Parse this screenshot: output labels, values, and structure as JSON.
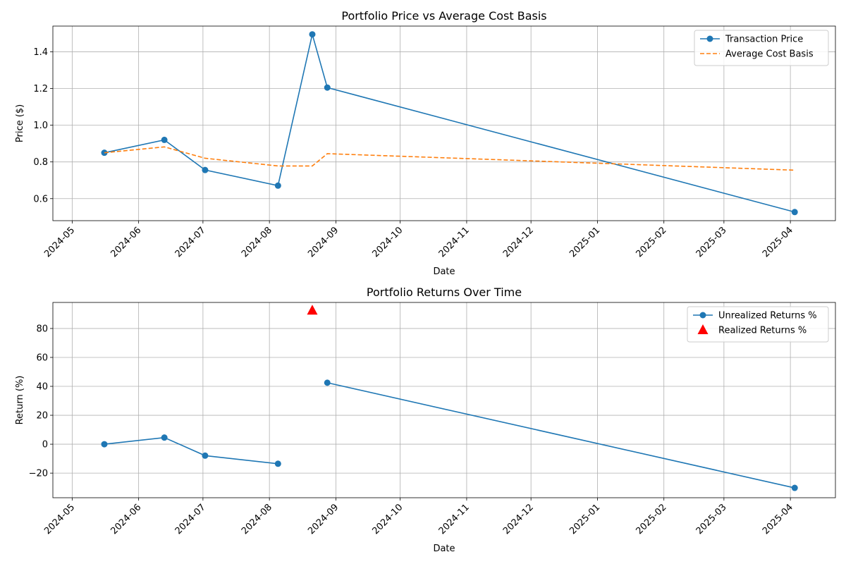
{
  "chart_data": [
    {
      "type": "line",
      "title": "Portfolio Price vs Average Cost Basis",
      "xlabel": "Date",
      "ylabel": "Price ($)",
      "xlim": [
        "2024-04-22",
        "2025-04-22"
      ],
      "ylim": [
        0.48,
        1.54
      ],
      "yticks": [
        0.6,
        0.8,
        1.0,
        1.2,
        1.4
      ],
      "ytick_labels": [
        "0.6",
        "0.8",
        "1.0",
        "1.2",
        "1.4"
      ],
      "xticks": [
        "2024-05-01",
        "2024-06-01",
        "2024-07-01",
        "2024-08-01",
        "2024-09-01",
        "2024-10-01",
        "2024-11-01",
        "2024-12-01",
        "2025-01-01",
        "2025-02-01",
        "2025-03-01",
        "2025-04-01"
      ],
      "xtick_labels": [
        "2024-05",
        "2024-06",
        "2024-07",
        "2024-08",
        "2024-09",
        "2024-10",
        "2024-11",
        "2024-12",
        "2025-01",
        "2025-02",
        "2025-03",
        "2025-04"
      ],
      "grid": true,
      "legend_position": "top-right",
      "series": [
        {
          "name": "Transaction Price",
          "color": "#1f77b4",
          "style": "solid",
          "marker": "circle",
          "x": [
            "2024-05-16",
            "2024-06-13",
            "2024-07-02",
            "2024-08-05",
            "2024-08-21",
            "2024-08-28",
            "2025-04-03"
          ],
          "y": [
            0.85,
            0.92,
            0.756,
            0.671,
            1.495,
            1.205,
            0.527
          ]
        },
        {
          "name": "Average Cost Basis",
          "color": "#ff7f0e",
          "style": "dashed",
          "marker": "none",
          "x": [
            "2024-05-16",
            "2024-06-13",
            "2024-07-02",
            "2024-08-05",
            "2024-08-21",
            "2024-08-28",
            "2025-04-03"
          ],
          "y": [
            0.85,
            0.882,
            0.82,
            0.778,
            0.778,
            0.845,
            0.755
          ]
        }
      ]
    },
    {
      "type": "line",
      "title": "Portfolio Returns Over Time",
      "xlabel": "Date",
      "ylabel": "Return (%)",
      "xlim": [
        "2024-04-22",
        "2025-04-22"
      ],
      "ylim": [
        -37,
        98
      ],
      "yticks": [
        -20,
        0,
        20,
        40,
        60,
        80
      ],
      "ytick_labels": [
        "−20",
        "0",
        "20",
        "40",
        "60",
        "80"
      ],
      "xticks": [
        "2024-05-01",
        "2024-06-01",
        "2024-07-01",
        "2024-08-01",
        "2024-09-01",
        "2024-10-01",
        "2024-11-01",
        "2024-12-01",
        "2025-01-01",
        "2025-02-01",
        "2025-03-01",
        "2025-04-01"
      ],
      "xtick_labels": [
        "2024-05",
        "2024-06",
        "2024-07",
        "2024-08",
        "2024-09",
        "2024-10",
        "2024-11",
        "2024-12",
        "2025-01",
        "2025-02",
        "2025-03",
        "2025-04"
      ],
      "grid": true,
      "legend_position": "top-right",
      "series": [
        {
          "name": "Unrealized Returns %",
          "color": "#1f77b4",
          "style": "solid",
          "marker": "circle",
          "segments": [
            {
              "x": [
                "2024-05-16",
                "2024-06-13",
                "2024-07-02",
                "2024-08-05"
              ],
              "y": [
                0,
                4.6,
                -7.9,
                -13.5
              ]
            },
            {
              "x": [
                "2024-08-28",
                "2025-04-03"
              ],
              "y": [
                42.5,
                -30.2
              ]
            }
          ]
        },
        {
          "name": "Realized Returns %",
          "color": "#ff0000",
          "style": "none",
          "marker": "triangle",
          "x": [
            "2024-08-21"
          ],
          "y": [
            92.5
          ]
        }
      ]
    }
  ]
}
